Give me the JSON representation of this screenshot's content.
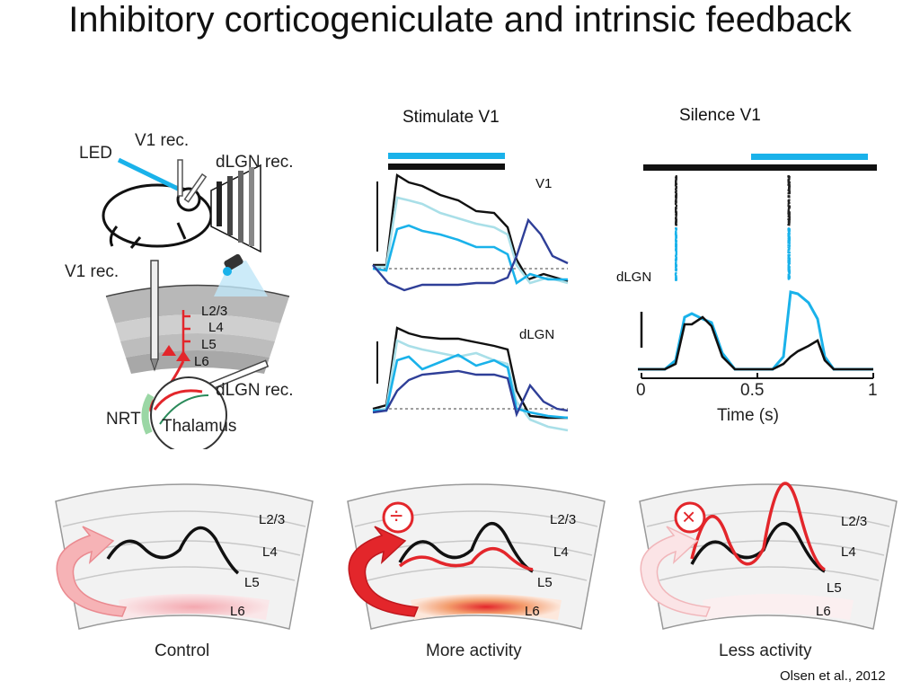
{
  "title": "Inhibitory corticogeniculate and intrinsic feedback",
  "headers": {
    "stimulate": "Stimulate V1",
    "silence": "Silence V1"
  },
  "schematic": {
    "led": "LED",
    "v1_rec_top": "V1 rec.",
    "dlgn_rec_top": "dLGN rec.",
    "v1_rec_mid": "V1 rec.",
    "layers": [
      "L2/3",
      "L4",
      "L5",
      "L6"
    ],
    "dlgn_rec_mid": "dLGN rec.",
    "nrt": "NRT",
    "thalamus": "Thalamus"
  },
  "traces": {
    "v1": "V1",
    "dlgn": "dLGN"
  },
  "silence_panel": {
    "dlgn": "dLGN",
    "ticks": [
      "0",
      "0.5",
      "1"
    ],
    "xlabel": "Time (s)"
  },
  "bottom_panels": [
    {
      "caption": "Control",
      "layers": [
        "L2/3",
        "L4",
        "L5",
        "L6"
      ]
    },
    {
      "caption": "More activity",
      "layers": [
        "L2/3",
        "L4",
        "L5",
        "L6"
      ],
      "symbol": "÷"
    },
    {
      "caption": "Less activity",
      "layers": [
        "L2/3",
        "L4",
        "L5",
        "L6"
      ],
      "symbol": "×"
    }
  ],
  "citation": "Olsen et al., 2012",
  "colors": {
    "cyan": "#1ab2ea",
    "light_cyan": "#a9dfe8",
    "dark_blue": "#2f3f98",
    "red": "#e3262b"
  }
}
